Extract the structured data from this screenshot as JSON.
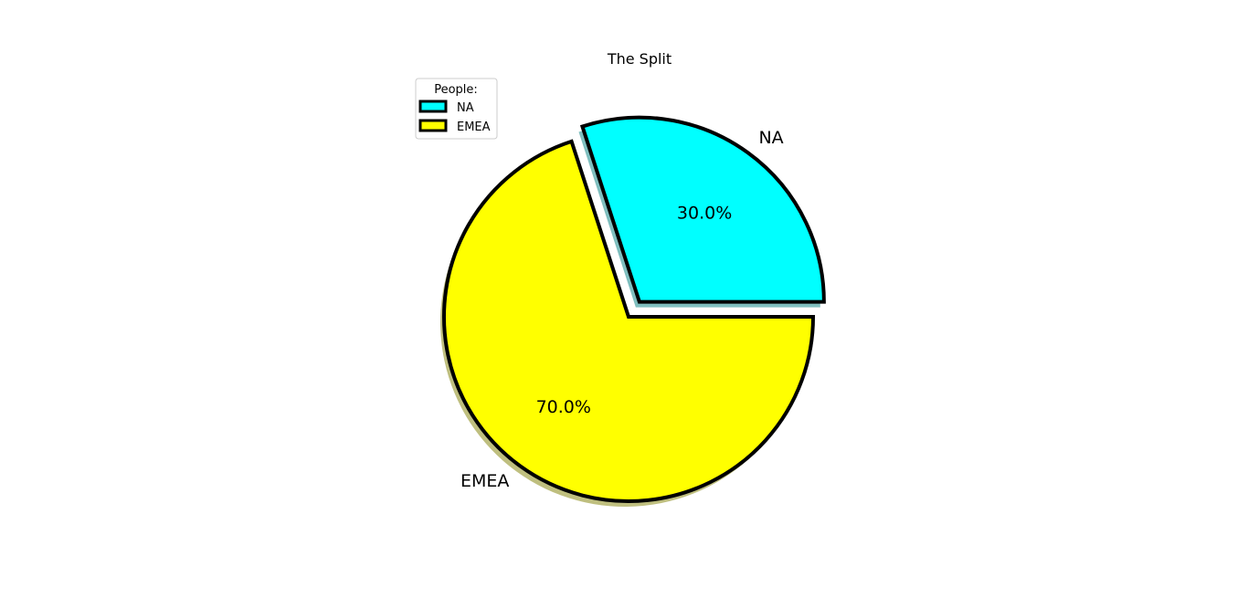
{
  "chart_data": {
    "type": "pie",
    "title": "The Split",
    "categories": [
      "NA",
      "EMEA"
    ],
    "values": [
      30,
      70
    ],
    "percent_labels": [
      "30.0%",
      "70.0%"
    ],
    "colors": [
      "#00ffff",
      "#ffff00"
    ],
    "edge_color": "#000000",
    "explode": [
      0.1,
      0
    ],
    "shadow": true,
    "start_angle_deg": 0,
    "direction": "counterclockwise",
    "legend": {
      "title": "People:",
      "entries": [
        "NA",
        "EMEA"
      ],
      "placement": "upper-left"
    }
  }
}
